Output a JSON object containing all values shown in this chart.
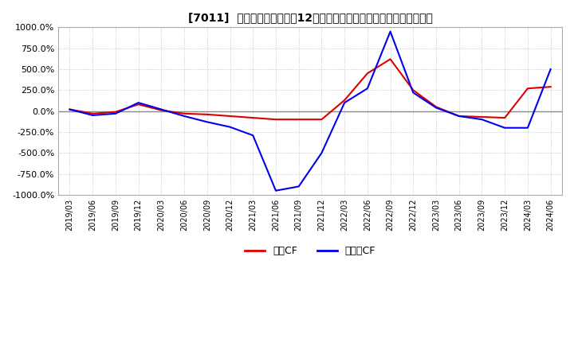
{
  "title": "[7011]  キャッシュフローの12か月移動合計の対前年同期増減率の推移",
  "ylim": [
    -1000,
    1000
  ],
  "yticks": [
    -1000,
    -750,
    -500,
    -250,
    0,
    250,
    500,
    750,
    1000
  ],
  "ytick_labels": [
    "-1000.0%",
    "-750.0%",
    "-500.0%",
    "-250.0%",
    "0.0%",
    "250.0%",
    "500.0%",
    "750.0%",
    "1000.0%"
  ],
  "legend_labels": [
    "営業CF",
    "フリーCF"
  ],
  "line_colors": [
    "#dd0000",
    "#0000ee"
  ],
  "background_color": "#ffffff",
  "grid_color": "#bbbbbb",
  "x_dates": [
    "2019/03",
    "2019/06",
    "2019/09",
    "2019/12",
    "2020/03",
    "2020/06",
    "2020/09",
    "2020/12",
    "2021/03",
    "2021/06",
    "2021/09",
    "2021/12",
    "2022/03",
    "2022/06",
    "2022/09",
    "2022/12",
    "2023/03",
    "2023/06",
    "2023/09",
    "2023/12",
    "2024/03",
    "2024/06"
  ],
  "eigyo_cf": [
    20,
    -30,
    -10,
    80,
    10,
    -30,
    -40,
    -60,
    -80,
    -100,
    -100,
    -100,
    130,
    450,
    620,
    250,
    50,
    -60,
    -70,
    -80,
    270,
    290
  ],
  "free_cf": [
    20,
    -50,
    -30,
    100,
    20,
    -60,
    -130,
    -190,
    -290,
    -950,
    -900,
    -500,
    100,
    270,
    950,
    220,
    40,
    -60,
    -100,
    -200,
    -200,
    500
  ]
}
